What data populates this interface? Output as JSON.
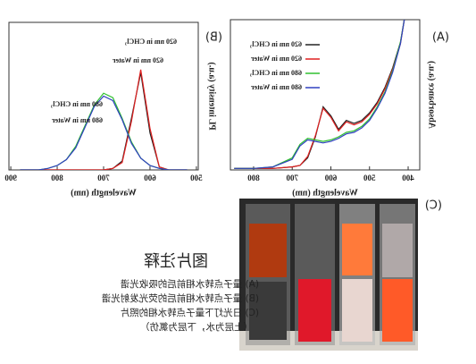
{
  "chart_data": [
    {
      "type": "line",
      "label": "(A)",
      "x_label": "Wavelength (nm)",
      "y_label": "Absorbance (a.u.)",
      "x": [
        410,
        420,
        440,
        460,
        480,
        500,
        520,
        540,
        560,
        580,
        600,
        620,
        640,
        660,
        680,
        700,
        750,
        800,
        850
      ],
      "xlim": [
        370,
        860
      ],
      "ylim": [
        0,
        1
      ],
      "xticks": [
        400,
        500,
        600,
        700,
        800
      ],
      "legend": "upper right",
      "series": [
        {
          "name": "620 nm in CHCl₃",
          "color": "#222222",
          "values": [
            1.0,
            0.85,
            0.68,
            0.55,
            0.45,
            0.38,
            0.33,
            0.31,
            0.33,
            0.27,
            0.36,
            0.42,
            0.22,
            0.08,
            0.03,
            0.02,
            0.01,
            0.01,
            0.01
          ]
        },
        {
          "name": "620 nm in Water",
          "color": "#e02020",
          "values": [
            1.0,
            0.84,
            0.67,
            0.54,
            0.44,
            0.37,
            0.32,
            0.3,
            0.32,
            0.26,
            0.35,
            0.41,
            0.23,
            0.09,
            0.03,
            0.02,
            0.01,
            0.01,
            0.01
          ]
        },
        {
          "name": "680 nm in CHCl₃",
          "color": "#30c030",
          "values": [
            1.0,
            0.85,
            0.66,
            0.52,
            0.42,
            0.34,
            0.29,
            0.26,
            0.25,
            0.22,
            0.2,
            0.19,
            0.2,
            0.21,
            0.17,
            0.08,
            0.02,
            0.01,
            0.01
          ]
        },
        {
          "name": "680 nm in Water",
          "color": "#3040c0",
          "values": [
            1.0,
            0.84,
            0.65,
            0.51,
            0.41,
            0.33,
            0.28,
            0.25,
            0.24,
            0.21,
            0.19,
            0.18,
            0.19,
            0.2,
            0.16,
            0.07,
            0.02,
            0.01,
            0.01
          ]
        }
      ]
    },
    {
      "type": "line",
      "label": "(B)",
      "x_label": "Wavelength (nm)",
      "y_label": "PL intensity (a.u.)",
      "x": [
        520,
        540,
        560,
        580,
        600,
        620,
        640,
        660,
        680,
        700,
        720,
        740,
        760,
        780,
        800,
        820,
        840,
        860,
        880
      ],
      "xlim": [
        496,
        904
      ],
      "ylim": [
        0,
        1
      ],
      "xticks": [
        500,
        600,
        700,
        800,
        900
      ],
      "annotations": [
        "620 nm in CHCl₃",
        "620 nm in Water",
        "680 nm in CHCl₃",
        "680 nm in Water"
      ],
      "series": [
        {
          "color": "#222222",
          "values": [
            0,
            0,
            0,
            0.02,
            0.25,
            0.66,
            0.35,
            0.06,
            0.01,
            0,
            0,
            0,
            0,
            0,
            0,
            0,
            0,
            0,
            0
          ]
        },
        {
          "color": "#e02020",
          "values": [
            0,
            0,
            0,
            0.02,
            0.28,
            0.68,
            0.33,
            0.05,
            0.01,
            0,
            0,
            0,
            0,
            0,
            0,
            0,
            0,
            0,
            0
          ]
        },
        {
          "color": "#30c030",
          "values": [
            0,
            0,
            0,
            0.01,
            0.03,
            0.08,
            0.19,
            0.35,
            0.49,
            0.52,
            0.44,
            0.3,
            0.16,
            0.07,
            0.03,
            0.01,
            0,
            0,
            0
          ]
        },
        {
          "color": "#3040c0",
          "values": [
            0,
            0,
            0,
            0.01,
            0.03,
            0.08,
            0.18,
            0.34,
            0.47,
            0.5,
            0.43,
            0.29,
            0.15,
            0.07,
            0.03,
            0.01,
            0,
            0,
            0
          ]
        }
      ]
    }
  ],
  "photo": {
    "label": "(C)"
  },
  "caption": {
    "title": "图片注释",
    "lines": [
      "(A) 量子点转水相前后的吸收光谱",
      "(B) 量子点转水相前后的荧光发射光谱",
      "(C) 日光灯下量子点转水相的照片",
      "（上层为水，下层为氯仿）"
    ]
  }
}
